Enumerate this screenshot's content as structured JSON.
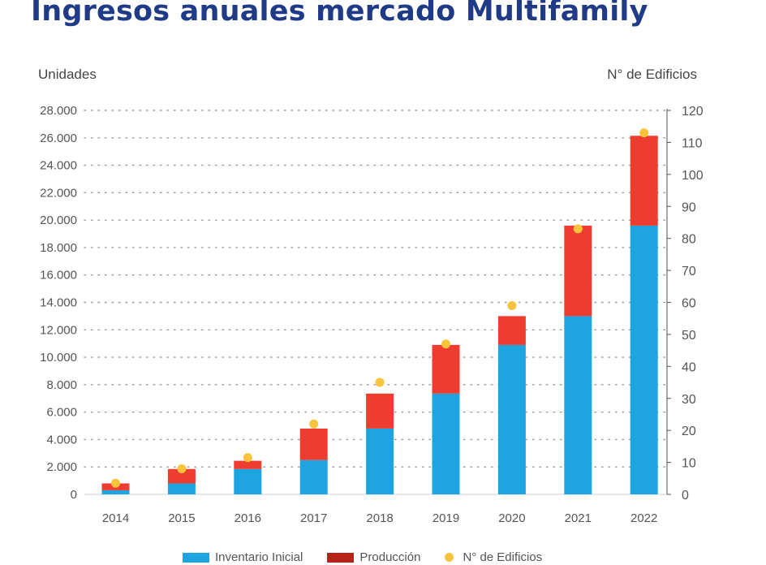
{
  "title": "Ingresos anuales mercado Multifamily",
  "colors": {
    "inventario": "#1ea5e0",
    "produccion": "#ef3c30",
    "produccion_legend": "#b8221b",
    "edificios": "#f9c43c"
  },
  "chart_data": {
    "type": "bar",
    "stacked": true,
    "title": "Ingresos anuales mercado Multifamily",
    "ylabel": "Unidades",
    "y2label": "N° de Edificios",
    "ylim": [
      0,
      28000
    ],
    "y2lim": [
      0,
      120
    ],
    "categories": [
      "2014",
      "2015",
      "2016",
      "2017",
      "2018",
      "2019",
      "2020",
      "2021",
      "2022"
    ],
    "yticks": [
      "0",
      "2.000",
      "4.000",
      "6.000",
      "8.000",
      "10.000",
      "12.000",
      "14.000",
      "16.000",
      "18.000",
      "20.000",
      "22.000",
      "24.000",
      "26.000",
      "28.000"
    ],
    "y2ticks": [
      "0",
      "10",
      "20",
      "30",
      "40",
      "50",
      "60",
      "70",
      "80",
      "90",
      "100",
      "110",
      "120"
    ],
    "series": [
      {
        "name": "Inventario Inicial",
        "kind": "bar",
        "axis": "left",
        "values": [
          300,
          800,
          1850,
          2500,
          4800,
          7350,
          10900,
          13000,
          19600
        ]
      },
      {
        "name": "Producción",
        "kind": "bar",
        "axis": "left",
        "values": [
          500,
          1050,
          600,
          2300,
          2550,
          3550,
          2100,
          6600,
          6550
        ]
      },
      {
        "name": "N° de Edificios",
        "kind": "scatter",
        "axis": "right",
        "values": [
          3.5,
          8,
          11.5,
          22,
          35,
          47,
          59,
          83,
          113
        ]
      }
    ],
    "grid": "dotted-horizontal",
    "legend": "bottom"
  }
}
